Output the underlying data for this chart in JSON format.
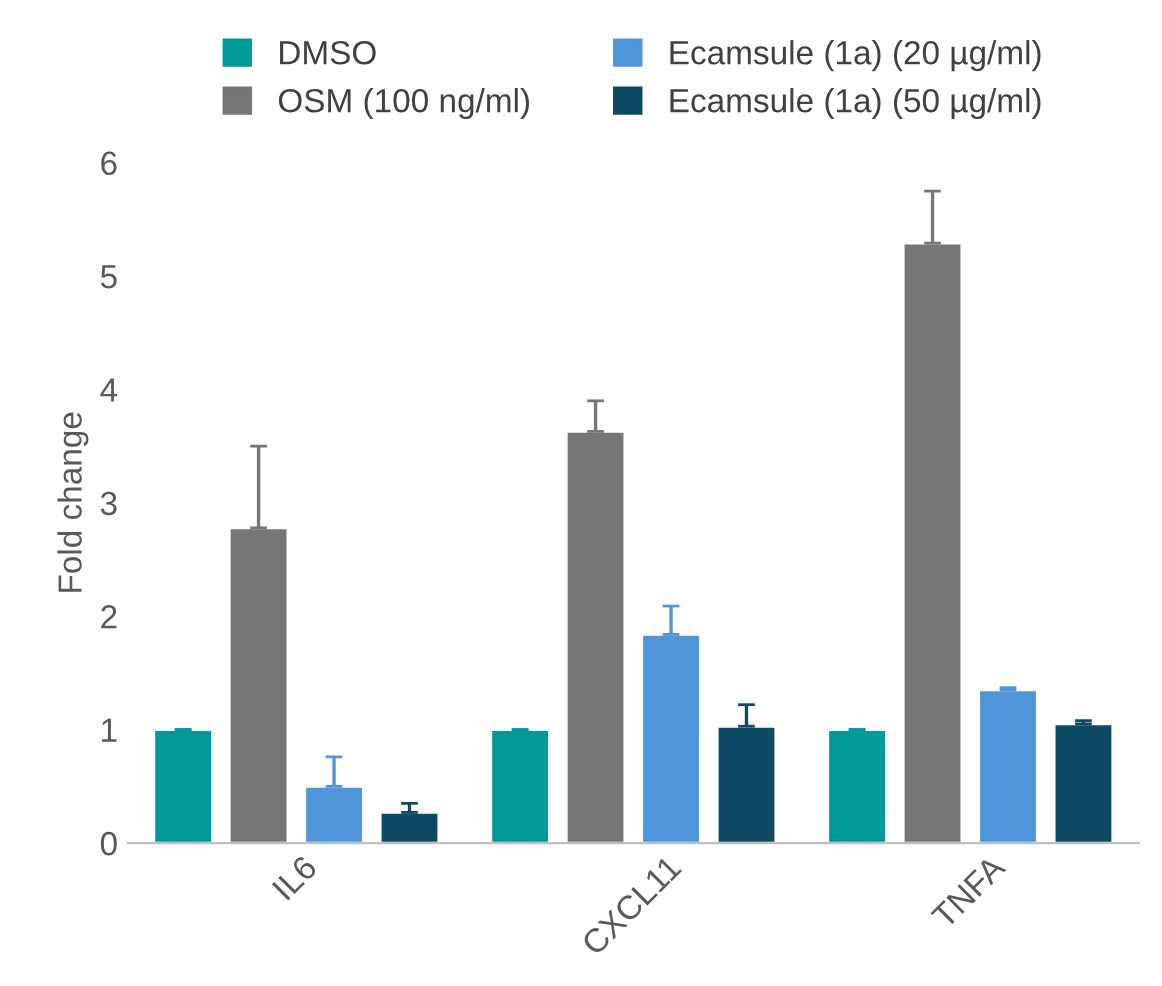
{
  "chart_data": {
    "type": "bar",
    "ylabel": "Fold change",
    "categories": [
      "IL6",
      "CXCL11",
      "TNFA"
    ],
    "ylim": [
      0,
      6
    ],
    "yticks": [
      0,
      1,
      2,
      3,
      4,
      5,
      6
    ],
    "grid": false,
    "legend": "top",
    "series": [
      {
        "name": "DMSO",
        "color": "#009999",
        "values": [
          1.0,
          1.0,
          1.0
        ],
        "errors": [
          [
            1.0,
            1.0
          ],
          [
            1.0,
            1.0
          ],
          [
            1.0,
            1.0
          ]
        ]
      },
      {
        "name": "OSM (100 ng/ml)",
        "color": "#767676",
        "values": [
          2.78,
          3.63,
          5.29
        ],
        "errors": [
          [
            2.78,
            3.5
          ],
          [
            3.63,
            3.9
          ],
          [
            5.29,
            5.75
          ]
        ]
      },
      {
        "name": "Ecamsule (1a) (20 µg/ml)",
        "color": "#4e95d9",
        "values": [
          0.5,
          1.84,
          1.35
        ],
        "errors": [
          [
            0.5,
            0.76
          ],
          [
            1.84,
            2.09
          ],
          [
            1.35,
            1.37
          ]
        ]
      },
      {
        "name": "Ecamsule (1a) (50 µg/ml)",
        "color": "#0e4a63",
        "values": [
          0.27,
          1.03,
          1.05
        ],
        "errors": [
          [
            0.27,
            0.35
          ],
          [
            1.03,
            1.22
          ],
          [
            1.05,
            1.08
          ]
        ]
      }
    ]
  }
}
